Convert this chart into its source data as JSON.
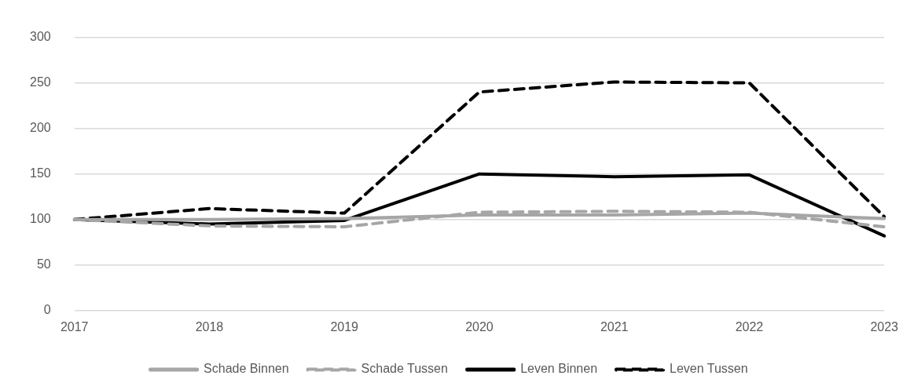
{
  "chart_data": {
    "type": "line",
    "categories": [
      "2017",
      "2018",
      "2019",
      "2020",
      "2021",
      "2022",
      "2023"
    ],
    "series": [
      {
        "name": "Schade Binnen",
        "color": "#a6a6a6",
        "line_style": "solid",
        "values": [
          100,
          100,
          101,
          105,
          105,
          107,
          101
        ]
      },
      {
        "name": "Schade Tussen",
        "color": "#a6a6a6",
        "line_style": "dashed",
        "values": [
          100,
          93,
          92,
          108,
          109,
          108,
          92
        ]
      },
      {
        "name": "Leven Binnen",
        "color": "#000000",
        "line_style": "solid",
        "values": [
          100,
          95,
          99,
          150,
          147,
          149,
          82
        ]
      },
      {
        "name": "Leven Tussen",
        "color": "#000000",
        "line_style": "dashed",
        "values": [
          100,
          112,
          107,
          240,
          251,
          250,
          103
        ]
      }
    ],
    "ylim": [
      0,
      300
    ],
    "yticks": [
      0,
      50,
      100,
      150,
      200,
      250,
      300
    ],
    "grid": "y",
    "legend": "bottom",
    "marker": "none"
  }
}
